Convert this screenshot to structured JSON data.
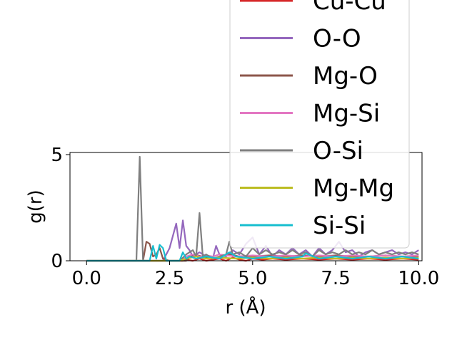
{
  "chart_data": {
    "type": "line",
    "xlabel": "r (Å)",
    "ylabel": "g(r)",
    "xlim": [
      -0.5,
      10.1
    ],
    "ylim": [
      0,
      5.1
    ],
    "xticks": [
      0.0,
      2.5,
      5.0,
      7.5,
      10.0
    ],
    "xtick_labels": [
      "0.0",
      "2.5",
      "5.0",
      "7.5",
      "10.0"
    ],
    "yticks": [
      0,
      5
    ],
    "ytick_labels": [
      "0",
      "5"
    ],
    "grid": false,
    "legend_position": "upper-right",
    "series": [
      {
        "name": "Cu-Cu",
        "color": "#d62728",
        "x": [
          0,
          1.0,
          2.0,
          2.9,
          3.0,
          3.2,
          3.4,
          3.6,
          3.8,
          4.0,
          4.2,
          4.4,
          4.6,
          4.8,
          5.0,
          5.3,
          5.6,
          6.0,
          6.5,
          7.0,
          7.5,
          8.0,
          8.5,
          9.0,
          9.5,
          10.0
        ],
        "y": [
          0,
          0,
          0,
          0,
          0.05,
          0.0,
          0.1,
          0.0,
          0.05,
          0.1,
          0.0,
          0.15,
          0.05,
          0.0,
          0.1,
          0.05,
          0.1,
          0.05,
          0.1,
          0.05,
          0.1,
          0.05,
          0.1,
          0.05,
          0.1,
          0.05
        ]
      },
      {
        "name": "O-O",
        "color": "#9467bd",
        "x": [
          0,
          2.3,
          2.5,
          2.7,
          2.8,
          2.9,
          3.0,
          3.1,
          3.2,
          3.4,
          3.6,
          3.8,
          3.9,
          4.0,
          4.2,
          4.4,
          4.6,
          4.8,
          5.0,
          5.2,
          5.4,
          5.6,
          5.8,
          6.0,
          6.2,
          6.4,
          6.6,
          6.8,
          7.0,
          7.2,
          7.4,
          7.6,
          7.8,
          8.0,
          8.2,
          8.4,
          8.6,
          8.8,
          9.0,
          9.2,
          9.4,
          9.6,
          9.8,
          10.0
        ],
        "y": [
          0,
          0,
          0.6,
          1.75,
          0.6,
          1.9,
          0.7,
          0.5,
          0.2,
          0.4,
          0.2,
          0.1,
          0.7,
          0.3,
          0.2,
          0.5,
          0.3,
          0.8,
          1.1,
          0.3,
          0.7,
          0.2,
          0.5,
          0.3,
          0.6,
          0.3,
          0.5,
          0.2,
          0.6,
          0.3,
          0.5,
          0.9,
          0.4,
          0.5,
          0.2,
          0.4,
          0.5,
          0.3,
          0.4,
          0.5,
          0.3,
          0.4,
          0.3,
          0.5
        ]
      },
      {
        "name": "Mg-O",
        "color": "#8c564b",
        "x": [
          0,
          1.7,
          1.8,
          1.9,
          2.0,
          2.1,
          2.2,
          2.3,
          2.5,
          3.0,
          3.2,
          3.5,
          3.8,
          4.0,
          4.3,
          4.6,
          5.0,
          5.5,
          6.0,
          6.5,
          7.0,
          7.5,
          8.0,
          8.5,
          9.0,
          9.5,
          10.0
        ],
        "y": [
          0,
          0,
          0.9,
          0.8,
          0.2,
          0.3,
          0.6,
          0.1,
          0,
          0,
          0.3,
          0.2,
          0.1,
          0.2,
          0.3,
          0.2,
          0.2,
          0.25,
          0.2,
          0.25,
          0.2,
          0.25,
          0.2,
          0.2,
          0.25,
          0.2,
          0.2
        ]
      },
      {
        "name": "Mg-Si",
        "color": "#e377c2",
        "x": [
          0,
          2.8,
          3.0,
          3.2,
          3.4,
          3.6,
          3.8,
          4.0,
          4.5,
          5.0,
          5.5,
          6.0,
          6.5,
          7.0,
          7.5,
          8.0,
          8.5,
          9.0,
          9.5,
          10.0
        ],
        "y": [
          0,
          0,
          0.2,
          0.3,
          0.2,
          0.25,
          0.2,
          0.3,
          0.2,
          0.25,
          0.2,
          0.25,
          0.2,
          0.25,
          0.2,
          0.25,
          0.2,
          0.25,
          0.2,
          0.25
        ]
      },
      {
        "name": "O-Si",
        "color": "#7f7f7f",
        "x": [
          0,
          1.5,
          1.6,
          1.7,
          1.8,
          2.8,
          3.0,
          3.2,
          3.3,
          3.4,
          3.5,
          3.6,
          3.8,
          4.0,
          4.2,
          4.3,
          4.4,
          4.6,
          4.8,
          5.0,
          5.2,
          5.4,
          5.6,
          5.8,
          6.0,
          6.2,
          6.4,
          6.6,
          6.8,
          7.0,
          7.2,
          7.4,
          7.6,
          7.8,
          8.0,
          8.2,
          8.4,
          8.6,
          8.8,
          9.0,
          9.2,
          9.4,
          9.6,
          9.8,
          10.0
        ],
        "y": [
          0,
          0,
          4.9,
          0,
          0,
          0,
          0.3,
          0.5,
          0.2,
          2.25,
          0.2,
          0.3,
          0.1,
          0.2,
          0.3,
          0.9,
          0.3,
          0.4,
          0.2,
          0.6,
          0.3,
          0.5,
          0.3,
          0.4,
          0.3,
          0.5,
          0.3,
          0.4,
          0.2,
          0.5,
          0.3,
          0.4,
          0.3,
          0.5,
          0.3,
          0.4,
          0.3,
          0.5,
          0.3,
          0.4,
          0.3,
          0.4,
          0.3,
          0.4,
          0.3
        ]
      },
      {
        "name": "Mg-Mg",
        "color": "#bcbd22",
        "x": [
          0,
          2.8,
          3.0,
          3.3,
          3.6,
          4.0,
          4.5,
          5.0,
          5.5,
          6.0,
          6.5,
          7.0,
          7.5,
          8.0,
          8.5,
          9.0,
          9.5,
          10.0
        ],
        "y": [
          0,
          0,
          0.1,
          0.2,
          0.1,
          0.15,
          0.1,
          0.15,
          0.1,
          0.15,
          0.1,
          0.15,
          0.1,
          0.15,
          0.1,
          0.15,
          0.1,
          0.15
        ]
      },
      {
        "name": "Si-Si",
        "color": "#17becf",
        "x": [
          0,
          1.9,
          2.0,
          2.1,
          2.2,
          2.3,
          2.4,
          2.8,
          2.9,
          3.0,
          3.1,
          3.3,
          3.6,
          4.0,
          4.3,
          4.5,
          5.0,
          5.5,
          6.0,
          6.5,
          6.6,
          7.0,
          7.5,
          8.0,
          8.5,
          9.0,
          9.5,
          10.0
        ],
        "y": [
          0,
          0,
          0.7,
          0.1,
          0.75,
          0.6,
          0,
          0,
          0.4,
          0.1,
          0.2,
          0.1,
          0.2,
          0.1,
          0.4,
          0.2,
          0.1,
          0.2,
          0.1,
          0.2,
          0.35,
          0.1,
          0.2,
          0.1,
          0.2,
          0.1,
          0.2,
          0.1
        ]
      }
    ]
  }
}
